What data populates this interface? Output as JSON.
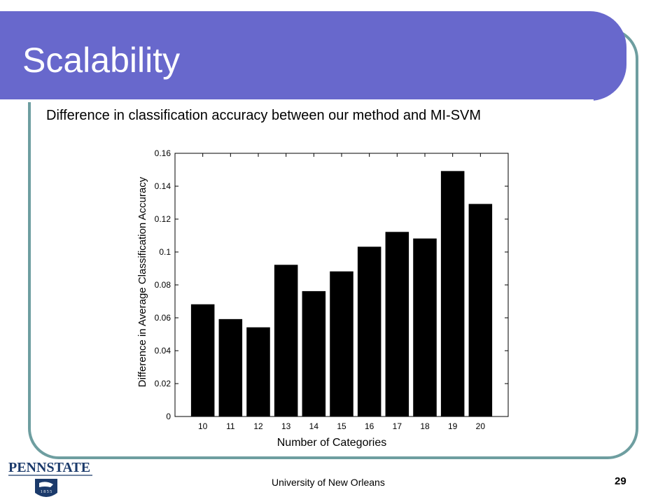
{
  "slide": {
    "title": "Scalability",
    "subtitle": "Difference in classification accuracy between our method and MI-SVM",
    "footer": "University of New Orleans",
    "page_number": "29",
    "logo_text": "PENNSTATE",
    "logo_year": "1855"
  },
  "colors": {
    "title_bar": "#6868cc",
    "frame_border": "#6e9ea0",
    "bars": "#000000"
  },
  "chart_data": {
    "type": "bar",
    "categories": [
      "10",
      "11",
      "12",
      "13",
      "14",
      "15",
      "16",
      "17",
      "18",
      "19",
      "20"
    ],
    "values": [
      0.068,
      0.059,
      0.054,
      0.092,
      0.076,
      0.088,
      0.103,
      0.112,
      0.108,
      0.149,
      0.129
    ],
    "xlabel": "Number of Categories",
    "ylabel": "Difference in Average Classification Accuracy",
    "ylim": [
      0,
      0.16
    ],
    "yticks": [
      "0",
      "0.02",
      "0.04",
      "0.06",
      "0.08",
      "0.1",
      "0.12",
      "0.14",
      "0.16"
    ],
    "grid": false,
    "legend": "none"
  }
}
